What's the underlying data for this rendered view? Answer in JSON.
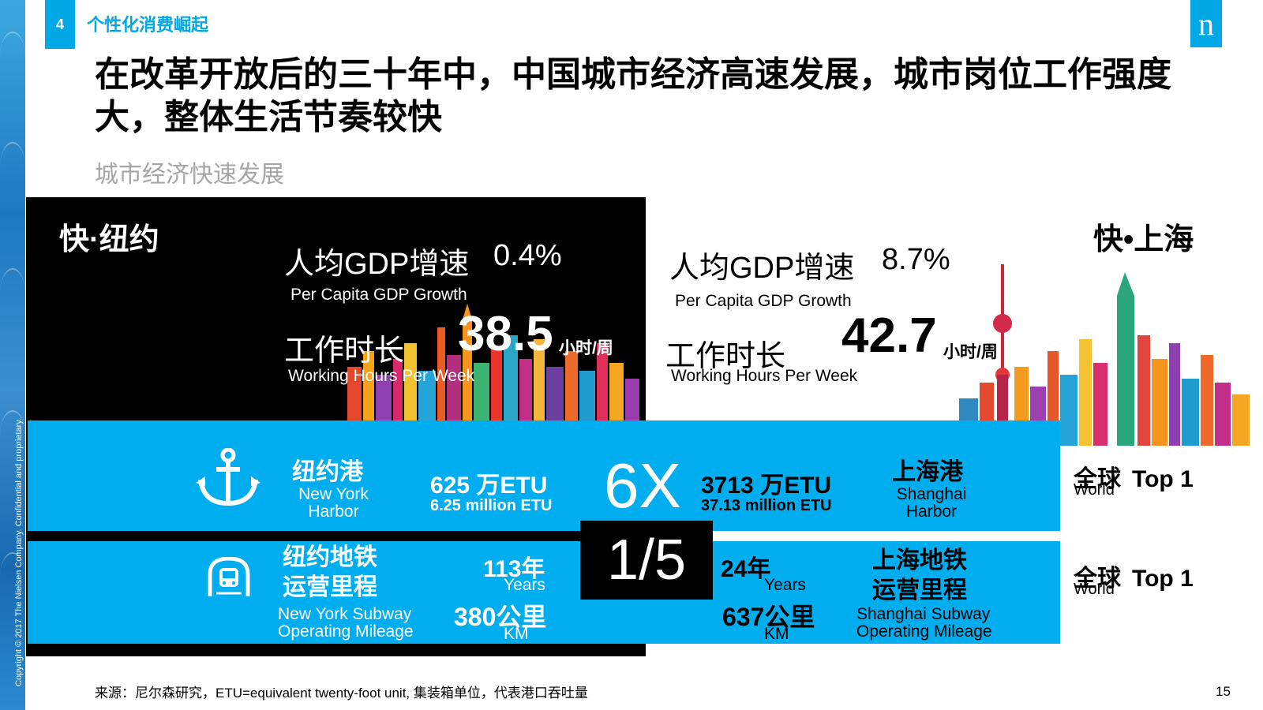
{
  "slide": {
    "section_number": "4",
    "section_title": "个性化消费崛起",
    "logo_letter": "n",
    "headline_line1": "在改革开放后的三十年中，中国城市经济高速发展，城市岗位工作强度",
    "headline_line2": "大，整体生活节奏较快",
    "subheadline": "城市经济快速发展",
    "copyright": "Copyright © 2017 The Nielsen Company. Confidential and proprietary.",
    "source": "来源：尼尔森研究，ETU=equivalent twenty-foot unit, 集装箱单位，代表港口吞吐量",
    "page_number": "15"
  },
  "new_york": {
    "label": "快·纽约",
    "gdp_cn": "人均GDP增速",
    "gdp_value": "0.4%",
    "gdp_en": "Per Capita GDP Growth",
    "hours_cn": "工作时长",
    "hours_value": "38.5",
    "hours_unit": "小时/周",
    "hours_en": "Working Hours Per Week",
    "port_cn": "纽约港",
    "port_en": "New York Harbor",
    "port_value": "625 万ETU",
    "port_value_en": "6.25 million ETU",
    "subway_cn_line1": "纽约地铁",
    "subway_cn_line2": "运营里程",
    "subway_en_line1": "New York Subway",
    "subway_en_line2": "Operating Mileage",
    "subway_years": "113年",
    "subway_years_en": "Years",
    "subway_km": "380公里",
    "subway_km_en": "KM"
  },
  "shanghai": {
    "label": "快•上海",
    "gdp_cn": "人均GDP增速",
    "gdp_value": "8.7%",
    "gdp_en": "Per Capita GDP Growth",
    "hours_cn": "工作时长",
    "hours_value": "42.7",
    "hours_unit": "小时/周",
    "hours_en": "Working Hours Per Week",
    "port_cn": "上海港",
    "port_en": "Shanghai Harbor",
    "port_value": "3713 万ETU",
    "port_value_en": "37.13 million ETU",
    "subway_cn_line1": "上海地铁",
    "subway_cn_line2": "运营里程",
    "subway_en_line1": "Shanghai Subway",
    "subway_en_line2": "Operating Mileage",
    "subway_years": "24年",
    "subway_years_en": "Years",
    "subway_km": "637公里",
    "subway_km_en": "KM"
  },
  "comparison": {
    "port_ratio": "6X",
    "subway_ratio": "1/5"
  },
  "rankings": {
    "port_cn": "全球",
    "port_en": "World",
    "port_rank": "Top 1",
    "subway_cn": "全球",
    "subway_en": "World",
    "subway_rank": "Top 1"
  },
  "colors": {
    "accent_blue": "#00aeef",
    "panel_black": "#000000",
    "subhead_grey": "#a6a6a6"
  },
  "icons": [
    "anchor-icon",
    "subway-train-icon",
    "nielsen-logo"
  ]
}
